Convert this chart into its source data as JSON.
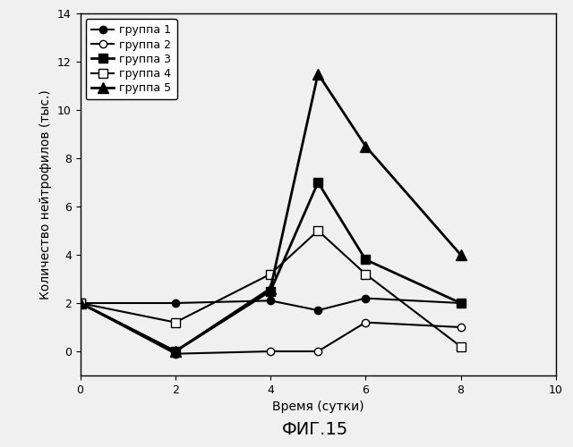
{
  "title": "ФИГ.15",
  "xlabel": "Время (сутки)",
  "ylabel": "Количество нейтрофилов (тыс.)",
  "xlim": [
    0,
    10
  ],
  "ylim": [
    -1,
    14
  ],
  "xticks": [
    0,
    2,
    4,
    6,
    8,
    10
  ],
  "yticks": [
    0,
    2,
    4,
    6,
    8,
    10,
    12,
    14
  ],
  "series": [
    {
      "label": "группа 1",
      "x": [
        0,
        2,
        4,
        5,
        6,
        8
      ],
      "y": [
        2.0,
        2.0,
        2.1,
        1.7,
        2.2,
        2.0
      ],
      "color": "black",
      "marker": "o",
      "mfc": "black",
      "mec": "black",
      "ms": 6,
      "linewidth": 1.5
    },
    {
      "label": "группа 2",
      "x": [
        0,
        2,
        4,
        5,
        6,
        8
      ],
      "y": [
        2.0,
        -0.1,
        0.0,
        0.0,
        1.2,
        1.0
      ],
      "color": "black",
      "marker": "o",
      "mfc": "white",
      "mec": "black",
      "ms": 6,
      "linewidth": 1.5
    },
    {
      "label": "группа 3",
      "x": [
        0,
        2,
        4,
        5,
        6,
        8
      ],
      "y": [
        2.0,
        0.0,
        2.5,
        7.0,
        3.8,
        2.0
      ],
      "color": "black",
      "marker": "s",
      "mfc": "black",
      "mec": "black",
      "ms": 7,
      "linewidth": 2.0
    },
    {
      "label": "группа 4",
      "x": [
        0,
        2,
        4,
        5,
        6,
        8
      ],
      "y": [
        2.0,
        1.2,
        3.2,
        5.0,
        3.2,
        0.2
      ],
      "color": "black",
      "marker": "s",
      "mfc": "white",
      "mec": "black",
      "ms": 7,
      "linewidth": 1.5
    },
    {
      "label": "группа 5",
      "x": [
        0,
        2,
        4,
        5,
        6,
        8
      ],
      "y": [
        2.0,
        0.0,
        2.6,
        11.5,
        8.5,
        4.0
      ],
      "color": "black",
      "marker": "^",
      "mfc": "black",
      "mec": "black",
      "ms": 8,
      "linewidth": 2.0
    }
  ],
  "background_color": "#f0f0f0",
  "legend_fontsize": 9,
  "axis_fontsize": 10,
  "tick_fontsize": 9,
  "title_fontsize": 14
}
